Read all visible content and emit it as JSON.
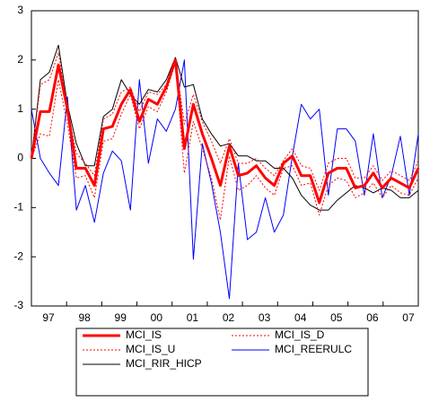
{
  "chart_data": {
    "type": "line",
    "categories": [
      null,
      "97",
      null,
      null,
      null,
      "98",
      null,
      null,
      null,
      "99",
      null,
      null,
      null,
      "00",
      null,
      null,
      null,
      "01",
      null,
      null,
      null,
      "02",
      null,
      null,
      null,
      "03",
      null,
      null,
      null,
      "04",
      null,
      null,
      null,
      "05",
      null,
      null,
      null,
      "06",
      null,
      null,
      null,
      "07",
      null,
      null
    ],
    "ylim": [
      -3,
      3
    ],
    "yticks": [
      -3,
      -2,
      -1,
      0,
      1,
      2,
      3
    ],
    "series": [
      {
        "name": "MCI_IS",
        "color": "#ff0000",
        "line_width": 3,
        "dashed": false,
        "values": [
          0,
          0.95,
          0.95,
          1.9,
          1.0,
          -0.2,
          -0.2,
          -0.55,
          0.6,
          0.65,
          1.1,
          1.4,
          0.75,
          1.2,
          1.1,
          1.45,
          2.0,
          0.2,
          1.1,
          0.5,
          0,
          -0.55,
          0.25,
          -0.35,
          -0.3,
          -0.15,
          -0.4,
          -0.55,
          -0.1,
          0.05,
          -0.35,
          -0.35,
          -0.9,
          -0.3,
          -0.2,
          -0.2,
          -0.6,
          -0.55,
          -0.3,
          -0.6,
          -0.4,
          -0.5,
          -0.6,
          -0.2
        ]
      },
      {
        "name": "MCI_IS_D",
        "color": "#ff0000",
        "line_width": 1,
        "dashed": true,
        "values": [
          0,
          0.5,
          0.45,
          1.6,
          0.7,
          -0.4,
          -0.35,
          -0.8,
          0.35,
          0.4,
          0.9,
          1.3,
          0.6,
          1.05,
          0.95,
          1.35,
          1.95,
          -0.3,
          0.75,
          0.2,
          -0.4,
          -1.25,
          0.05,
          -0.65,
          -0.55,
          -0.35,
          -0.6,
          -0.75,
          -0.2,
          -0.15,
          -0.55,
          -0.5,
          -1.15,
          -0.55,
          -0.4,
          -0.45,
          -0.8,
          -0.7,
          -0.5,
          -0.8,
          -0.55,
          -0.7,
          -0.75,
          -0.4
        ]
      },
      {
        "name": "MCI_IS_U",
        "color": "#ff0000",
        "line_width": 1,
        "dashed": true,
        "values": [
          0,
          1.5,
          1.6,
          2.15,
          1.0,
          0.1,
          -0.1,
          -0.35,
          0.8,
          0.9,
          1.35,
          1.45,
          0.95,
          1.35,
          1.3,
          1.5,
          2.0,
          0.7,
          1.3,
          0.75,
          0.35,
          -0.1,
          0.4,
          -0.1,
          -0.1,
          0,
          -0.2,
          -0.35,
          -0.05,
          0.2,
          -0.15,
          -0.2,
          -0.65,
          -0.1,
          0,
          0,
          -0.4,
          -0.4,
          -0.15,
          -0.45,
          -0.25,
          -0.35,
          -0.45,
          -0.05
        ]
      },
      {
        "name": "MCI_REERULC",
        "color": "#0000ff",
        "line_width": 1,
        "dashed": false,
        "values": [
          1.0,
          0,
          -0.3,
          -0.55,
          1.25,
          -1.05,
          -0.55,
          -1.3,
          -0.3,
          0.15,
          -0.05,
          -1.05,
          1.6,
          -0.1,
          0.8,
          0.55,
          1.0,
          2.0,
          -2.05,
          0.3,
          -0.5,
          -1.5,
          -2.85,
          -0.1,
          -1.65,
          -1.5,
          -0.8,
          -1.5,
          -1.15,
          0.05,
          1.1,
          0.8,
          1.0,
          -0.75,
          0.6,
          0.6,
          0.35,
          -0.75,
          0.5,
          -0.8,
          -0.35,
          0.45,
          -0.75,
          0.5
        ]
      },
      {
        "name": "MCI_RIR_HICP",
        "color": "#000000",
        "line_width": 1,
        "dashed": false,
        "values": [
          0,
          1.6,
          1.75,
          2.3,
          1.1,
          0.3,
          -0.15,
          -0.15,
          0.85,
          1.0,
          1.6,
          1.3,
          1.1,
          1.4,
          1.35,
          1.6,
          2.05,
          1.45,
          1.5,
          0.8,
          0.5,
          0.25,
          0.3,
          0.05,
          0.05,
          -0.05,
          -0.05,
          -0.2,
          -0.2,
          -0.4,
          -0.75,
          -0.95,
          -1.05,
          -1.05,
          -0.85,
          -0.7,
          -0.55,
          -0.6,
          -0.7,
          -0.6,
          -0.65,
          -0.8,
          -0.8,
          -0.65
        ]
      }
    ]
  }
}
